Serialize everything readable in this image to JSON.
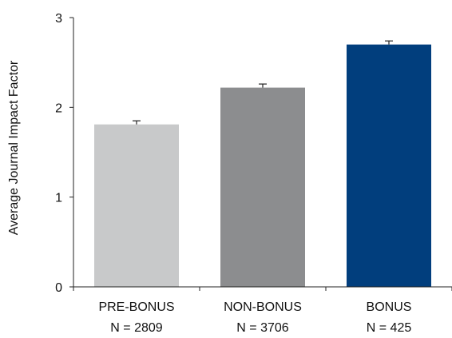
{
  "chart_data": {
    "type": "bar",
    "title": "",
    "xlabel": "",
    "ylabel": "Average Journal Impact Factor",
    "ylim": [
      0,
      3
    ],
    "yticks": [
      0,
      1,
      2,
      3
    ],
    "grid": false,
    "categories": [
      "PRE-BONUS",
      "NON-BONUS",
      "BONUS"
    ],
    "sample_labels": [
      "N = 2809",
      "N = 3706",
      "N = 425"
    ],
    "values": [
      1.81,
      2.22,
      2.7
    ],
    "error": [
      0.04,
      0.04,
      0.04
    ],
    "colors": [
      "#c8c9ca",
      "#8c8d8f",
      "#013e7d"
    ]
  }
}
